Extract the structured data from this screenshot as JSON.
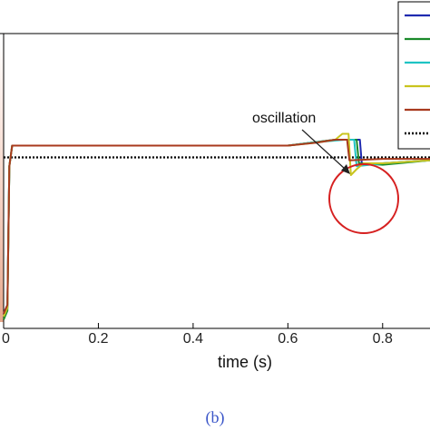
{
  "chart_data": {
    "type": "line",
    "xlabel": "time (s)",
    "xlim": [
      0,
      0.9
    ],
    "ylim": [
      0,
      1
    ],
    "grid": false,
    "x_ticks": [
      0,
      0.2,
      0.4,
      0.6,
      0.8
    ],
    "x_tick_labels": [
      "0",
      "0.2",
      "0.4",
      "0.6",
      "0.8"
    ],
    "legend": {
      "placement": "top-right",
      "entries": [
        {
          "color": "#1f2bb0",
          "style": "solid"
        },
        {
          "color": "#1a8a2a",
          "style": "solid"
        },
        {
          "color": "#1fc4c4",
          "style": "solid"
        },
        {
          "color": "#c9c41e",
          "style": "solid"
        },
        {
          "color": "#a83a1e",
          "style": "solid"
        },
        {
          "color": "#000000",
          "style": "dotted"
        }
      ]
    },
    "reference_line": {
      "color": "#000000",
      "style": "dotted",
      "y": 0.58
    },
    "series": [
      {
        "color": "#1f2bb0",
        "points": [
          [
            0,
            0.05
          ],
          [
            0.008,
            0.08
          ],
          [
            0.012,
            0.55
          ],
          [
            0.018,
            0.62
          ],
          [
            0.6,
            0.62
          ],
          [
            0.65,
            0.63
          ],
          [
            0.7,
            0.64
          ],
          [
            0.752,
            0.64
          ],
          [
            0.756,
            0.56
          ],
          [
            0.8,
            0.56
          ],
          [
            0.9,
            0.57
          ]
        ]
      },
      {
        "color": "#1a8a2a",
        "points": [
          [
            0,
            0.03
          ],
          [
            0.008,
            0.06
          ],
          [
            0.012,
            0.55
          ],
          [
            0.018,
            0.62
          ],
          [
            0.6,
            0.62
          ],
          [
            0.65,
            0.63
          ],
          [
            0.7,
            0.64
          ],
          [
            0.745,
            0.64
          ],
          [
            0.75,
            0.56
          ],
          [
            0.8,
            0.555
          ],
          [
            0.9,
            0.57
          ]
        ]
      },
      {
        "color": "#1fc4c4",
        "points": [
          [
            0,
            0.04
          ],
          [
            0.008,
            0.07
          ],
          [
            0.012,
            0.55
          ],
          [
            0.018,
            0.62
          ],
          [
            0.6,
            0.62
          ],
          [
            0.65,
            0.63
          ],
          [
            0.72,
            0.64
          ],
          [
            0.74,
            0.64
          ],
          [
            0.745,
            0.55
          ],
          [
            0.8,
            0.56
          ],
          [
            0.9,
            0.57
          ]
        ]
      },
      {
        "color": "#c9c41e",
        "points": [
          [
            0,
            0.04
          ],
          [
            0.008,
            0.07
          ],
          [
            0.012,
            0.55
          ],
          [
            0.018,
            0.62
          ],
          [
            0.6,
            0.62
          ],
          [
            0.66,
            0.63
          ],
          [
            0.7,
            0.64
          ],
          [
            0.715,
            0.66
          ],
          [
            0.728,
            0.66
          ],
          [
            0.733,
            0.52
          ],
          [
            0.745,
            0.54
          ],
          [
            0.76,
            0.56
          ],
          [
            0.8,
            0.56
          ],
          [
            0.9,
            0.57
          ]
        ]
      },
      {
        "color": "#a83a1e",
        "points": [
          [
            0,
            0.05
          ],
          [
            0.008,
            0.08
          ],
          [
            0.012,
            0.55
          ],
          [
            0.018,
            0.62
          ],
          [
            0.6,
            0.62
          ],
          [
            0.66,
            0.63
          ],
          [
            0.7,
            0.64
          ],
          [
            0.725,
            0.64
          ],
          [
            0.73,
            0.57
          ],
          [
            0.8,
            0.575
          ],
          [
            0.9,
            0.575
          ]
        ]
      }
    ],
    "annotation": {
      "text": "oscillation",
      "target_x": 0.73,
      "target_y": 0.6
    }
  },
  "caption": "(b)"
}
